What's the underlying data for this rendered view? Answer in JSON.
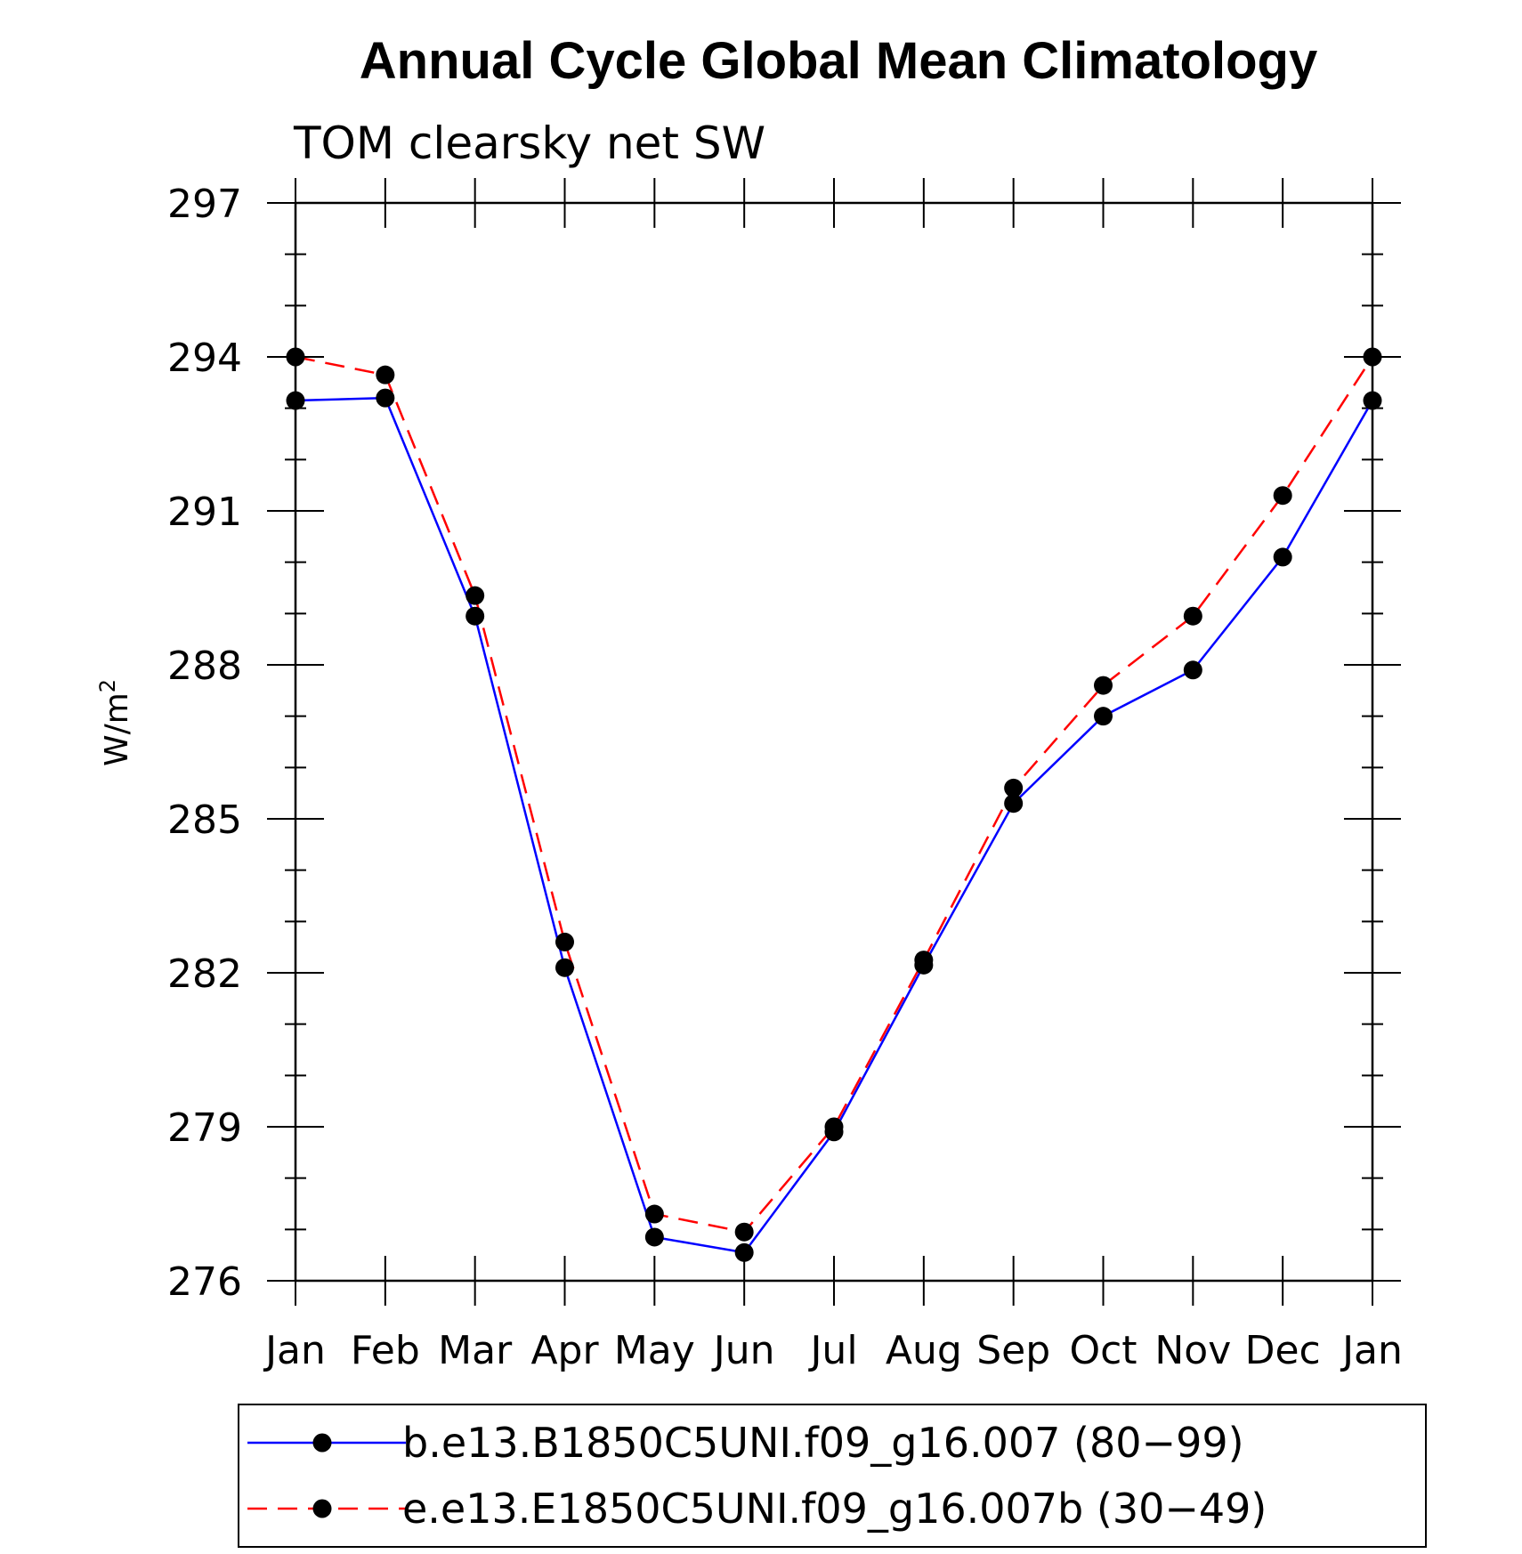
{
  "chart_data": {
    "type": "line",
    "title": "Annual Cycle Global Mean Climatology",
    "subtitle": "TOM clearsky net SW",
    "ylabel": "W/m",
    "ylabel_superscript": "2",
    "xlabel": "",
    "categories": [
      "Jan",
      "Feb",
      "Mar",
      "Apr",
      "May",
      "Jun",
      "Jul",
      "Aug",
      "Sep",
      "Oct",
      "Nov",
      "Dec",
      "Jan"
    ],
    "ylim": [
      276,
      297
    ],
    "yticks": [
      276,
      279,
      282,
      285,
      288,
      291,
      294,
      297
    ],
    "yminor_step": 1,
    "grid": false,
    "legend_position": "bottom",
    "series": [
      {
        "name": "b.e13.B1850C5UNI.f09_g16.007 (80−99)",
        "color": "#0000ff",
        "dash": "solid",
        "marker": "filled-circle",
        "values": [
          293.15,
          293.2,
          288.95,
          282.1,
          276.85,
          276.55,
          278.9,
          282.15,
          285.3,
          287.0,
          287.9,
          290.1,
          293.15
        ]
      },
      {
        "name": "e.e13.E1850C5UNI.f09_g16.007b (30−49)",
        "color": "#ff0000",
        "dash": "dashed",
        "marker": "filled-circle",
        "values": [
          294.0,
          293.65,
          289.35,
          282.6,
          277.3,
          276.95,
          279.0,
          282.25,
          285.6,
          287.6,
          288.95,
          291.3,
          294.0
        ]
      }
    ]
  }
}
